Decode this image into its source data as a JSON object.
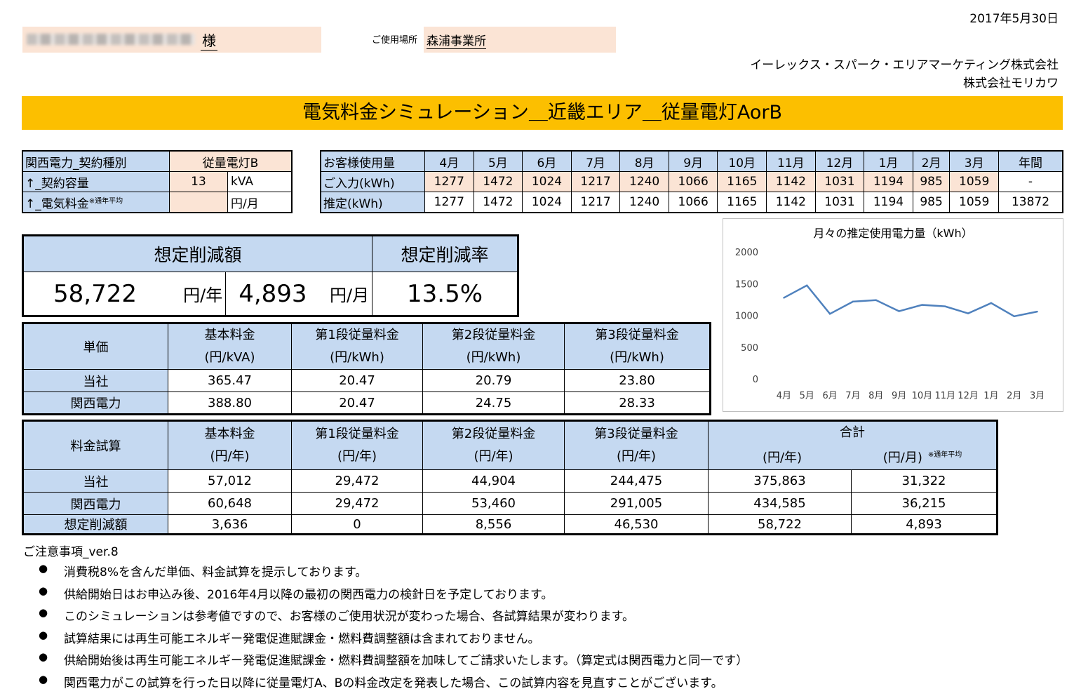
{
  "header": {
    "date": "2017年5月30日",
    "customer_suffix": "様",
    "usage_place_label": "ご使用場所",
    "usage_place": "森浦事業所",
    "company1": "イーレックス・スパーク・エリアマーケティング株式会社",
    "company2": "株式会社モリカワ"
  },
  "title": "電気料金シミュレーション＿近畿エリア＿従量電灯AorB",
  "contract": {
    "type_label": "関西電力_契約種別",
    "type_value": "従量電灯B",
    "capacity_label": "↑_契約容量",
    "capacity_value": "13",
    "capacity_unit": "kVA",
    "fee_label": "↑_電気料金",
    "fee_note": "※通年平均",
    "fee_value": "",
    "fee_unit": "円/月"
  },
  "monthly": {
    "header_label": "お客様使用量",
    "months": [
      "4月",
      "5月",
      "6月",
      "7月",
      "8月",
      "9月",
      "10月",
      "11月",
      "12月",
      "1月",
      "2月",
      "3月"
    ],
    "year_label": "年間",
    "input_label": "ご入力(kWh)",
    "input_values": [
      "1277",
      "1472",
      "1024",
      "1217",
      "1240",
      "1066",
      "1165",
      "1142",
      "1031",
      "1194",
      "985",
      "1059"
    ],
    "input_year": "-",
    "est_label": "推定(kWh)",
    "est_values": [
      "1277",
      "1472",
      "1024",
      "1217",
      "1240",
      "1066",
      "1165",
      "1142",
      "1031",
      "1194",
      "985",
      "1059"
    ],
    "est_year": "13872"
  },
  "savings": {
    "amount_label": "想定削減額",
    "rate_label": "想定削減率",
    "yearly": "58,722",
    "yearly_unit": "円/年",
    "monthly": "4,893",
    "monthly_unit": "円/月",
    "rate": "13.5%"
  },
  "unit_price": {
    "corner": "単価",
    "headers": [
      [
        "基本料金",
        "(円/kVA)"
      ],
      [
        "第1段従量料金",
        "(円/kWh)"
      ],
      [
        "第2段従量料金",
        "(円/kWh)"
      ],
      [
        "第3段従量料金",
        "(円/kWh)"
      ]
    ],
    "rows": [
      {
        "label": "当社",
        "values": [
          "365.47",
          "20.47",
          "20.79",
          "23.80"
        ]
      },
      {
        "label": "関西電力",
        "values": [
          "388.80",
          "20.47",
          "24.75",
          "28.33"
        ]
      }
    ]
  },
  "calc": {
    "corner": "料金試算",
    "headers": [
      [
        "基本料金",
        "(円/年)"
      ],
      [
        "第1段従量料金",
        "(円/年)"
      ],
      [
        "第2段従量料金",
        "(円/年)"
      ],
      [
        "第3段従量料金",
        "(円/年)"
      ]
    ],
    "total_label": "合計",
    "total_year": "(円/年)",
    "total_month": "(円/月)",
    "total_note": "※通年平均",
    "rows": [
      {
        "label": "当社",
        "values": [
          "57,012",
          "29,472",
          "44,904",
          "244,475",
          "375,863",
          "31,322"
        ]
      },
      {
        "label": "関西電力",
        "values": [
          "60,648",
          "29,472",
          "53,460",
          "291,005",
          "434,585",
          "36,215"
        ]
      },
      {
        "label": "想定削減額",
        "values": [
          "3,636",
          "0",
          "8,556",
          "46,530",
          "58,722",
          "4,893"
        ]
      }
    ]
  },
  "chart_data": {
    "type": "line",
    "title": "月々の推定使用電力量（kWh）",
    "categories": [
      "4月",
      "5月",
      "6月",
      "7月",
      "8月",
      "9月",
      "10月",
      "11月",
      "12月",
      "1月",
      "2月",
      "3月"
    ],
    "series": [
      {
        "values": [
          1277,
          1472,
          1024,
          1217,
          1240,
          1066,
          1165,
          1142,
          1031,
          1194,
          985,
          1059
        ]
      }
    ],
    "ylim": [
      0,
      2000
    ],
    "yticks": [
      0,
      500,
      1000,
      1500,
      2000
    ],
    "line_color": "#4f81bd",
    "grid": false
  },
  "notes": {
    "title": "ご注意事項_ver.8",
    "items": [
      "消費税8%を含んだ単価、料金試算を提示しております。",
      "供給開始日はお申込み後、2016年4月以降の最初の関西電力の検針日を予定しております。",
      "このシミュレーションは参考値ですので、お客様のご使用状況が変わった場合、各試算結果が変わります。",
      "試算結果には再生可能エネルギー発電促進賦課金・燃料費調整額は含まれておりません。",
      "供給開始後は再生可能エネルギー発電促進賦課金・燃料費調整額を加味してご請求いたします。（算定式は関西電力と同一です）",
      "関西電力がこの試算を行った日以降に従量電灯A、Bの料金改定を発表した場合、この試算内容を見直すことがございます。"
    ]
  },
  "colors": {
    "banner": "#fcbf00",
    "header_blue": "#c5d9f1",
    "input_pink": "#fbe4d5"
  }
}
